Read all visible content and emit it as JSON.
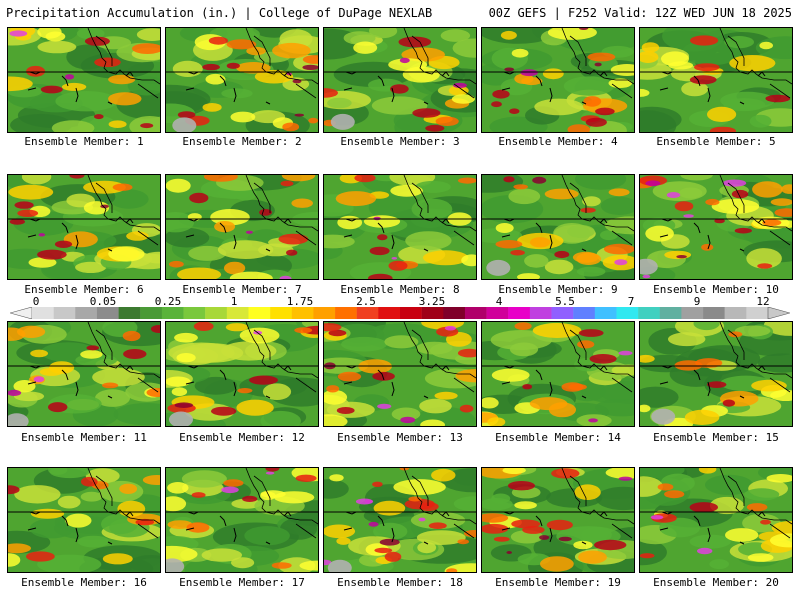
{
  "header": {
    "title": "Precipitation Accumulation (in.) | College of DuPage NEXLAB",
    "run_info": "00Z GEFS | F252 Valid: 12Z WED JUN 18 2025"
  },
  "legend": {
    "ticks": [
      "0",
      "0.05",
      "0.25",
      "1",
      "1.75",
      "2.5",
      "3.25",
      "4",
      "5.5",
      "7",
      "9",
      "12"
    ],
    "colors": [
      "#e0e0e0",
      "#c8c8c8",
      "#a8a8a8",
      "#8c8c8c",
      "#3c7a30",
      "#4a9a36",
      "#5ab33a",
      "#7ac83c",
      "#a8d838",
      "#d8e838",
      "#ffff20",
      "#ffe000",
      "#ffc000",
      "#ffa000",
      "#ff7000",
      "#f04020",
      "#e01010",
      "#c80010",
      "#a00018",
      "#80002a",
      "#b0006a",
      "#d0009a",
      "#e800c8",
      "#c040e0",
      "#9060ff",
      "#6080ff",
      "#40c0ff",
      "#30e8f0",
      "#40d0c0",
      "#60b0a0",
      "#a0a0a0",
      "#8a8a8a",
      "#b8b8b8",
      "#d0d0d0"
    ]
  },
  "members": [
    {
      "caption": "Ensemble Member: 1",
      "heavy": 1
    },
    {
      "caption": "Ensemble Member: 2",
      "heavy": 2
    },
    {
      "caption": "Ensemble Member: 3",
      "heavy": 1
    },
    {
      "caption": "Ensemble Member: 4",
      "heavy": 2
    },
    {
      "caption": "Ensemble Member: 5",
      "heavy": 0
    },
    {
      "caption": "Ensemble Member: 6",
      "heavy": 1
    },
    {
      "caption": "Ensemble Member: 7",
      "heavy": 1
    },
    {
      "caption": "Ensemble Member: 8",
      "heavy": 1
    },
    {
      "caption": "Ensemble Member: 9",
      "heavy": 1
    },
    {
      "caption": "Ensemble Member: 10",
      "heavy": 3
    },
    {
      "caption": "Ensemble Member: 11",
      "heavy": 1
    },
    {
      "caption": "Ensemble Member: 12",
      "heavy": 1
    },
    {
      "caption": "Ensemble Member: 13",
      "heavy": 2
    },
    {
      "caption": "Ensemble Member: 14",
      "heavy": 1
    },
    {
      "caption": "Ensemble Member: 15",
      "heavy": 0
    },
    {
      "caption": "Ensemble Member: 16",
      "heavy": 0
    },
    {
      "caption": "Ensemble Member: 17",
      "heavy": 1
    },
    {
      "caption": "Ensemble Member: 18",
      "heavy": 3
    },
    {
      "caption": "Ensemble Member: 19",
      "heavy": 2
    },
    {
      "caption": "Ensemble Member: 20",
      "heavy": 1
    }
  ]
}
